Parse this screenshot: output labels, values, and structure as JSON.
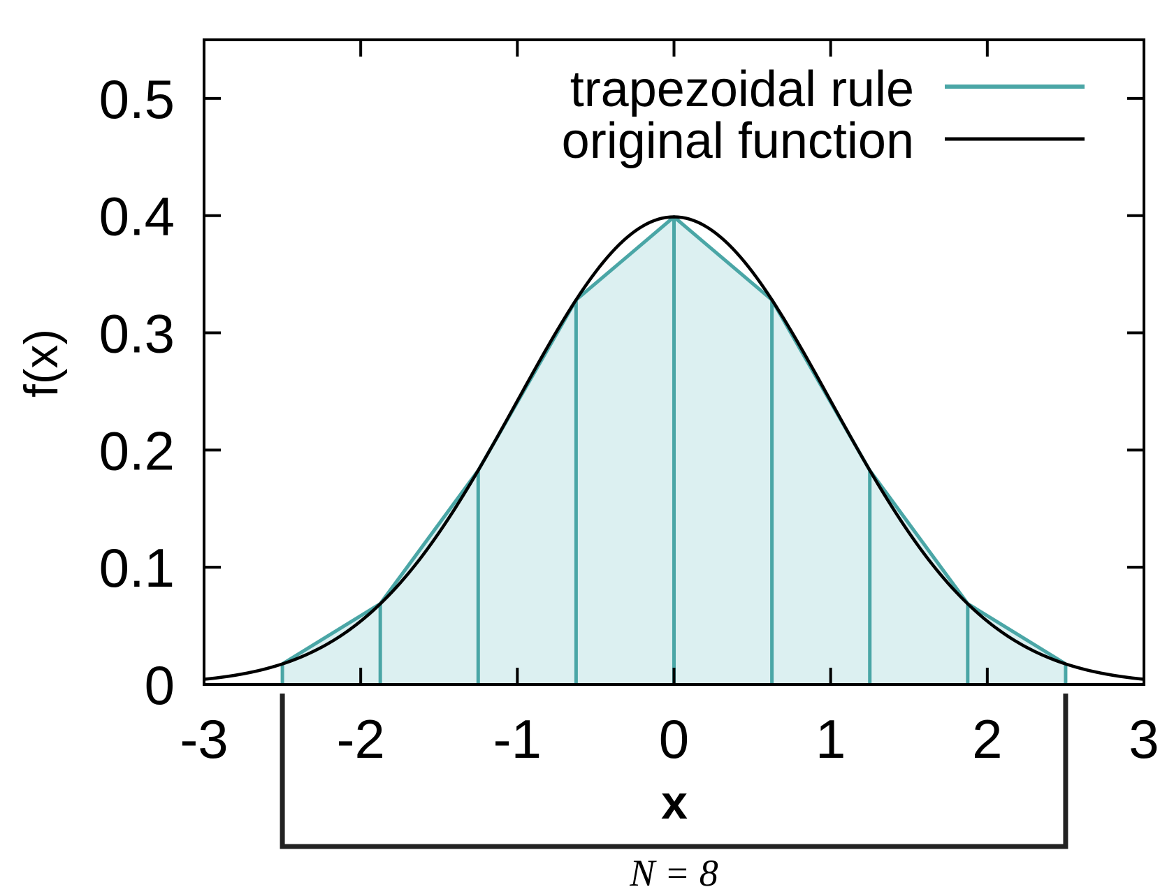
{
  "chart_data": {
    "type": "line",
    "xlabel": "x",
    "ylabel": "f(x)",
    "xlim": [
      -3,
      3
    ],
    "ylim": [
      0,
      0.55
    ],
    "x_ticks": [
      "-3",
      "-2",
      "-1",
      "0",
      "1",
      "2",
      "3"
    ],
    "y_ticks": [
      "0",
      "0.1",
      "0.2",
      "0.3",
      "0.4",
      "0.5"
    ],
    "grid": false,
    "legend_position": "top-right",
    "series": [
      {
        "name": "trapezoidal rule",
        "color": "#4aa6a6",
        "fill_color": "#dcf0f1",
        "x": [
          -2.5,
          -1.875,
          -1.25,
          -0.625,
          0,
          0.625,
          1.25,
          1.875,
          2.5
        ],
        "y": [
          0.0175,
          0.0689,
          0.1826,
          0.3281,
          0.3989,
          0.3281,
          0.1826,
          0.0689,
          0.0175
        ]
      },
      {
        "name": "original function",
        "color": "#000000",
        "function": "standard normal pdf",
        "x_range": [
          -3,
          3
        ]
      }
    ],
    "annotations": [
      {
        "text": "N = 8",
        "bracket_x": [
          -2.5,
          2.5
        ]
      }
    ]
  }
}
